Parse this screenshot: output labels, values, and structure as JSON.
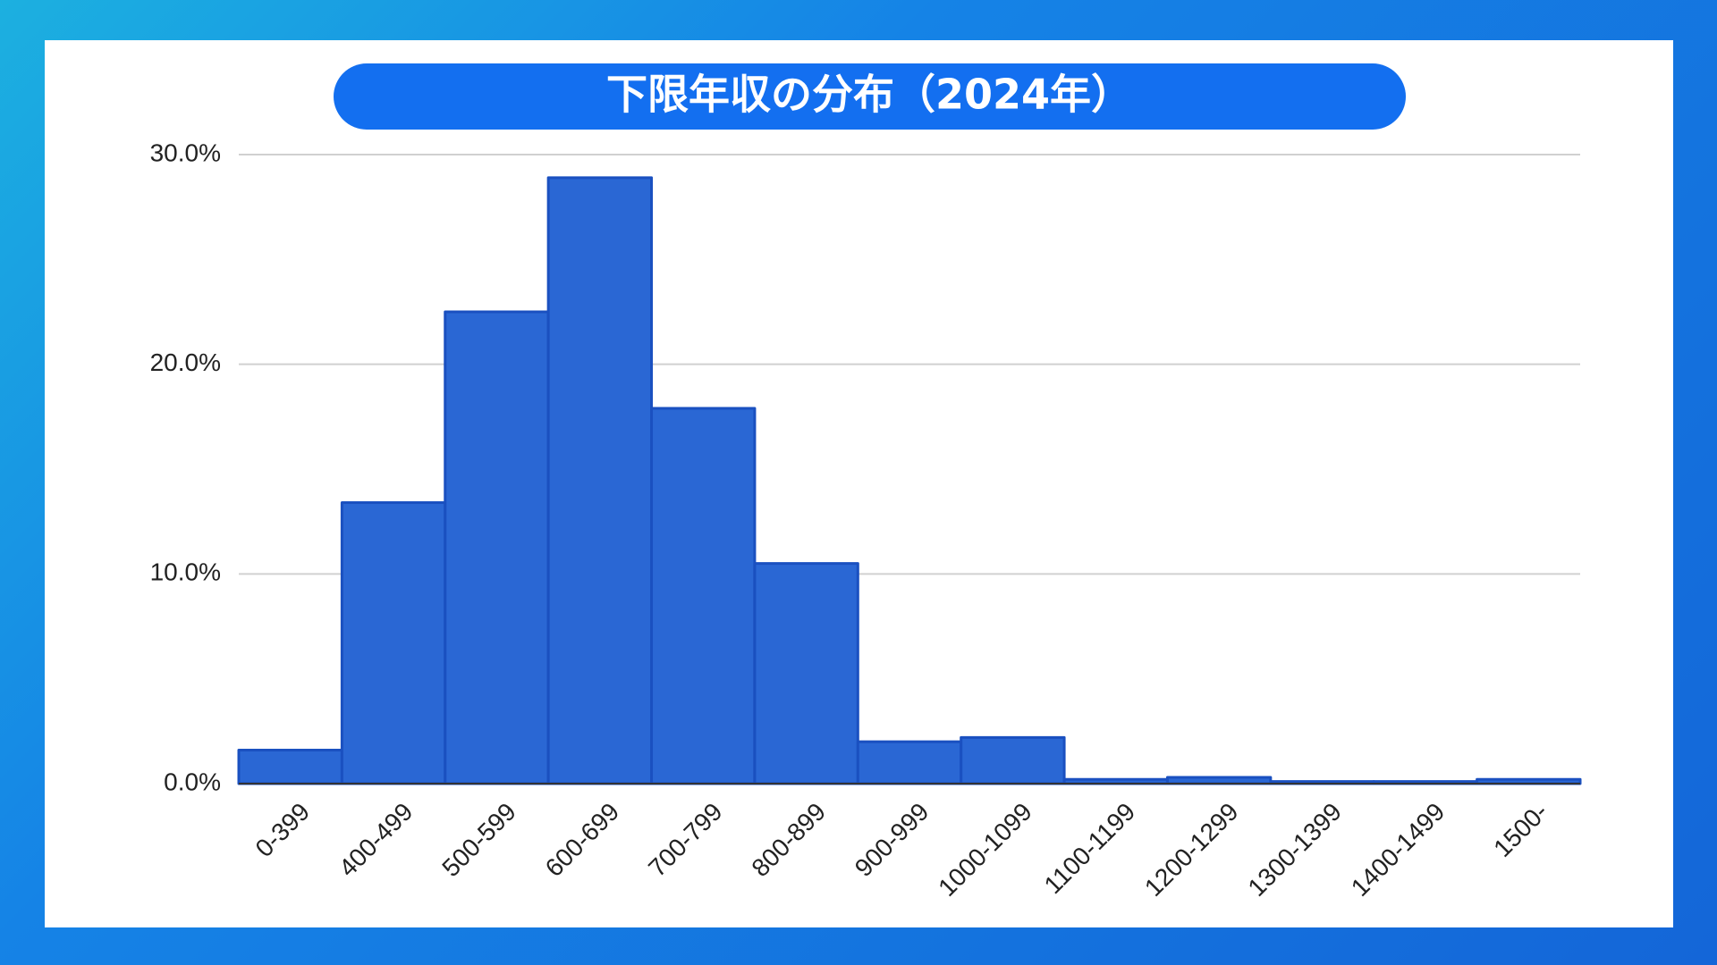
{
  "chart_data": {
    "type": "bar",
    "title": "下限年収の分布（2024年）",
    "categories": [
      "0-399",
      "400-499",
      "500-599",
      "600-699",
      "700-799",
      "800-899",
      "900-999",
      "1000-1099",
      "1100-1199",
      "1200-1299",
      "1300-1399",
      "1400-1499",
      "1500-"
    ],
    "values": [
      1.6,
      13.4,
      22.5,
      28.9,
      17.9,
      10.5,
      2.0,
      2.2,
      0.2,
      0.3,
      0.1,
      0.1,
      0.2
    ],
    "color": "#2a67d4",
    "ylim": [
      0,
      30
    ],
    "yticks": [
      {
        "value": 0,
        "label": "0.0%"
      },
      {
        "value": 10,
        "label": "10.0%"
      },
      {
        "value": 20,
        "label": "20.0%"
      },
      {
        "value": 30,
        "label": "30.0%"
      }
    ],
    "grid": true
  }
}
